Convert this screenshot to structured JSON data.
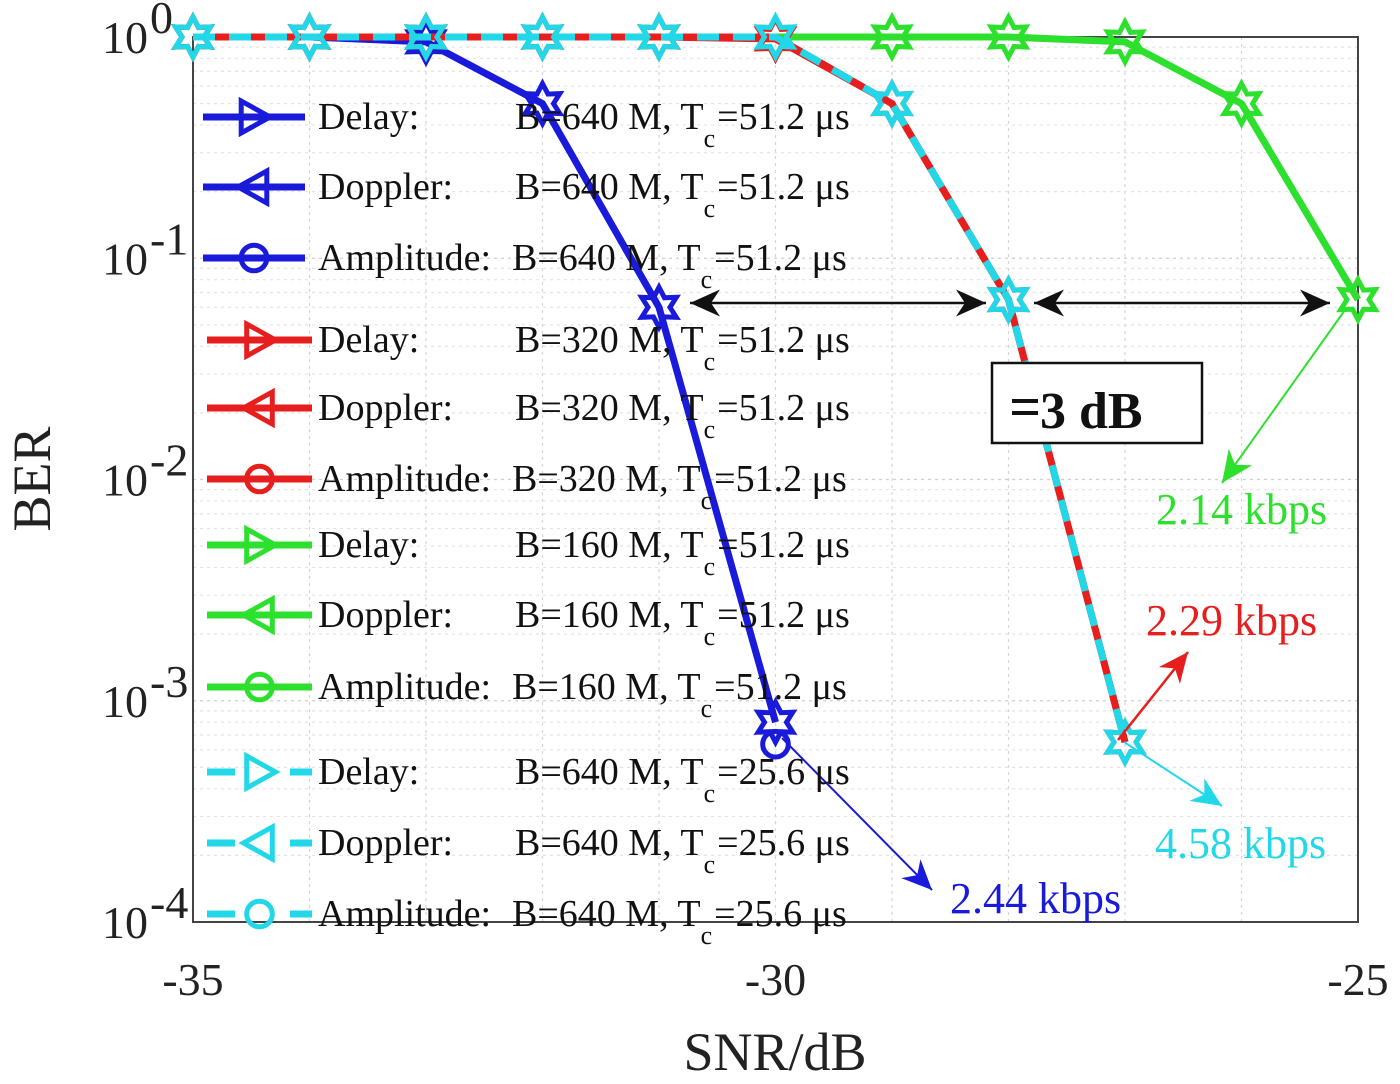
{
  "chart_data": {
    "type": "line",
    "xlabel": "SNR/dB",
    "ylabel": "BER",
    "xlim": [
      -35,
      -25
    ],
    "ylim": [
      0.0001,
      1
    ],
    "y_scale": "log",
    "grid": true,
    "x_ticks": [
      "-35",
      "-30",
      "-25"
    ],
    "y_ticks": [
      {
        "value": 1,
        "base": "10",
        "exp": "0"
      },
      {
        "value": 0.1,
        "base": "10",
        "exp": "-1"
      },
      {
        "value": 0.01,
        "base": "10",
        "exp": "-2"
      },
      {
        "value": 0.001,
        "base": "10",
        "exp": "-3"
      },
      {
        "value": 0.0001,
        "base": "10",
        "exp": "-4"
      }
    ],
    "legend_position": "left",
    "legend": [
      {
        "kind": "Delay:",
        "params": "B=640 M, T",
        "sub": "c",
        "tail": "=51.2 μs",
        "color": "#1a1adb",
        "marker": "tri-right",
        "dash": "solid"
      },
      {
        "kind": "Doppler:",
        "params": "B=640 M, T",
        "sub": "c",
        "tail": "=51.2 μs",
        "color": "#1a1adb",
        "marker": "tri-left",
        "dash": "solid"
      },
      {
        "kind": "Amplitude:",
        "params": "B=640 M, T",
        "sub": "c",
        "tail": "=51.2 μs",
        "color": "#1a1adb",
        "marker": "circle",
        "dash": "solid"
      },
      {
        "kind": "Delay:",
        "params": "B=320 M, T",
        "sub": "c",
        "tail": "=51.2 μs",
        "color": "#e61e1e",
        "marker": "tri-right",
        "dash": "solid"
      },
      {
        "kind": "Doppler:",
        "params": "B=320 M, T",
        "sub": "c",
        "tail": "=51.2 μs",
        "color": "#e61e1e",
        "marker": "tri-left",
        "dash": "solid"
      },
      {
        "kind": "Amplitude:",
        "params": "B=320 M, T",
        "sub": "c",
        "tail": "=51.2 μs",
        "color": "#e61e1e",
        "marker": "circle",
        "dash": "solid"
      },
      {
        "kind": "Delay:",
        "params": "B=160 M, T",
        "sub": "c",
        "tail": "=51.2 μs",
        "color": "#2ee02e",
        "marker": "tri-right",
        "dash": "solid"
      },
      {
        "kind": "Doppler:",
        "params": "B=160 M, T",
        "sub": "c",
        "tail": "=51.2 μs",
        "color": "#2ee02e",
        "marker": "tri-left",
        "dash": "solid"
      },
      {
        "kind": "Amplitude:",
        "params": "B=160 M, T",
        "sub": "c",
        "tail": "=51.2 μs",
        "color": "#2ee02e",
        "marker": "circle",
        "dash": "solid"
      },
      {
        "kind": "Delay:",
        "params": "B=640 M, T",
        "sub": "c",
        "tail": "=25.6 μs",
        "color": "#22d8e8",
        "marker": "tri-right",
        "dash": "dashed"
      },
      {
        "kind": "Doppler:",
        "params": "B=640 M, T",
        "sub": "c",
        "tail": "=25.6 μs",
        "color": "#22d8e8",
        "marker": "tri-left",
        "dash": "dashed"
      },
      {
        "kind": "Amplitude:",
        "params": "B=640 M, T",
        "sub": "c",
        "tail": "=25.6 μs",
        "color": "#22d8e8",
        "marker": "circle",
        "dash": "dashed"
      }
    ],
    "series": [
      {
        "color": "#1a1adb",
        "dash": "solid",
        "x": [
          -35,
          -34,
          -33,
          -32,
          -31,
          -30
        ],
        "y": [
          1,
          1,
          0.95,
          0.5,
          0.06,
          0.0008
        ]
      },
      {
        "color": "#2ee02e",
        "dash": "solid",
        "x": [
          -35,
          -34,
          -33,
          -32,
          -31,
          -30,
          -29,
          -28,
          -27,
          -26,
          -25
        ],
        "y": [
          1,
          1,
          1,
          1,
          1,
          1,
          1,
          1,
          0.95,
          0.5,
          0.065
        ]
      },
      {
        "color": "#e61e1e",
        "dash": "solid",
        "x": [
          -35,
          -34,
          -33,
          -32,
          -31,
          -30,
          -29,
          -28,
          -27
        ],
        "y": [
          1,
          1,
          1,
          1,
          1,
          0.98,
          0.5,
          0.065,
          0.00065
        ]
      },
      {
        "color": "#22d8e8",
        "dash": "dashed",
        "x": [
          -35,
          -34,
          -33,
          -32,
          -31,
          -30,
          -29,
          -28,
          -27
        ],
        "y": [
          1,
          1,
          1,
          1,
          1,
          1,
          0.5,
          0.065,
          0.00065
        ]
      }
    ],
    "annotations": [
      {
        "text": "2.14 kbps",
        "color": "#2ee02e"
      },
      {
        "text": "2.29 kbps",
        "color": "#e61e1e"
      },
      {
        "text": "4.58 kbps",
        "color": "#22d8e8"
      },
      {
        "text": "2.44 kbps",
        "color": "#1a1adb"
      },
      {
        "text": "3 dB",
        "color": "#111111"
      }
    ]
  }
}
